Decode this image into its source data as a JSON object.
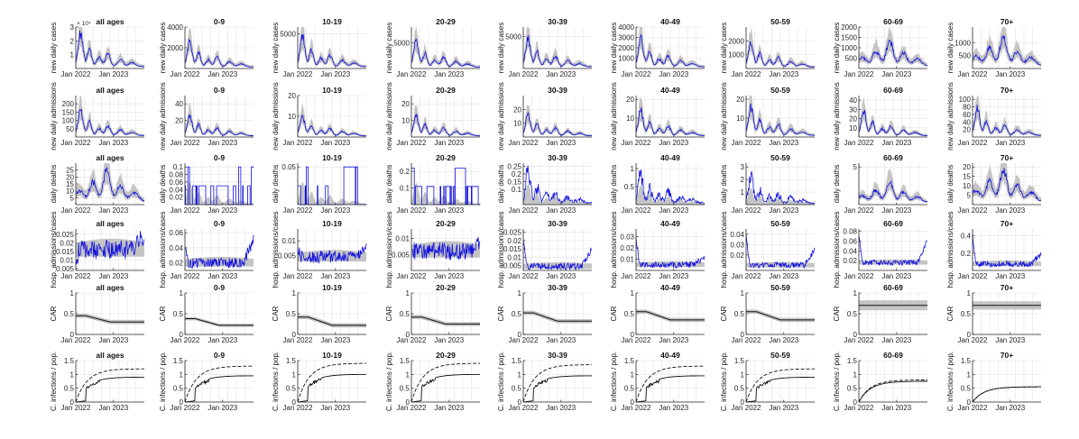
{
  "chart_data": {
    "type": "small-multiples-line",
    "title": "",
    "columns": [
      "all ages",
      "0-9",
      "10-19",
      "20-29",
      "30-39",
      "40-49",
      "50-59",
      "60-69",
      "70+"
    ],
    "x_tick_labels": [
      "Jan 2022",
      "Jan 2023"
    ],
    "colors": {
      "line": "#1010e0",
      "band": "#c4c4c4",
      "grid": "#e2e2e2",
      "axis": "#262626",
      "black": "#111111"
    },
    "rows": [
      {
        "ylabel": "new daily cases",
        "kind": "cases",
        "panels": [
          {
            "title": "all ages",
            "ymax": 3,
            "ticks": [
              1,
              2,
              3
            ],
            "multiplier": "× 10⁴",
            "peak": 2.5
          },
          {
            "title": "0-9",
            "ymax": 4000,
            "ticks": [
              2000,
              4000
            ],
            "peak": 2600
          },
          {
            "title": "10-19",
            "ymax": 6000,
            "ticks": [
              5000
            ],
            "peak": 4600
          },
          {
            "title": "20-29",
            "ymax": 8000,
            "ticks": [
              5000
            ],
            "peak": 5200
          },
          {
            "title": "30-39",
            "ymax": 6500,
            "ticks": [
              5000
            ],
            "peak": 4700
          },
          {
            "title": "40-49",
            "ymax": 4000,
            "ticks": [
              1000,
              2000,
              3000,
              4000
            ],
            "peak": 2900
          },
          {
            "title": "50-59",
            "ymax": 3000,
            "ticks": [
              1000,
              2000
            ],
            "peak": 1900
          },
          {
            "title": "60-69",
            "ymax": 2000,
            "ticks": [
              500,
              1000,
              1500,
              2000
            ],
            "peak": 1300
          },
          {
            "title": "70+",
            "ymax": 1600,
            "ticks": [
              500,
              1000
            ],
            "peak": 1200
          }
        ]
      },
      {
        "ylabel": "new daily admissions",
        "kind": "admissions",
        "panels": [
          {
            "title": "all ages",
            "ymax": 250,
            "ticks": [
              50,
              100,
              150,
              200
            ],
            "peak": 160
          },
          {
            "title": "0-9",
            "ymax": 50,
            "ticks": [
              20,
              40
            ],
            "peak": 26
          },
          {
            "title": "10-19",
            "ymax": 20,
            "ticks": [
              10,
              20
            ],
            "peak": 10
          },
          {
            "title": "20-29",
            "ymax": 25,
            "ticks": [
              10,
              20
            ],
            "peak": 13
          },
          {
            "title": "30-39",
            "ymax": 30,
            "ticks": [
              10,
              20
            ],
            "peak": 16
          },
          {
            "title": "40-49",
            "ymax": 22,
            "ticks": [
              10,
              20
            ],
            "peak": 14
          },
          {
            "title": "50-59",
            "ymax": 22,
            "ticks": [
              10,
              20
            ],
            "peak": 16
          },
          {
            "title": "60-69",
            "ymax": 45,
            "ticks": [
              10,
              20,
              30,
              40
            ],
            "peak": 28
          },
          {
            "title": "70+",
            "ymax": 110,
            "ticks": [
              20,
              40,
              60,
              80,
              100
            ],
            "peak": 75
          }
        ]
      },
      {
        "ylabel": "daily deaths",
        "kind": "deaths",
        "panels": [
          {
            "title": "all ages",
            "ymax": 30,
            "ticks": [
              5,
              10,
              15,
              20,
              25
            ],
            "peak": 25,
            "style": "smooth"
          },
          {
            "title": "0-9",
            "ymax": 0.11,
            "ticks": [
              0.02,
              0.04,
              0.06,
              0.08,
              0.1
            ],
            "peak": 0.1,
            "style": "sparse"
          },
          {
            "title": "10-19",
            "ymax": 0.055,
            "ticks": [
              0.05
            ],
            "peak": 0.05,
            "style": "sparse"
          },
          {
            "title": "20-29",
            "ymax": 0.25,
            "ticks": [
              0.1,
              0.2
            ],
            "peak": 0.22,
            "style": "sparse"
          },
          {
            "title": "30-39",
            "ymax": 0.27,
            "ticks": [
              0.1,
              0.15,
              0.2,
              0.25
            ],
            "peak": 0.22,
            "style": "noisy"
          },
          {
            "title": "40-49",
            "ymax": 1.15,
            "ticks": [
              0.5,
              1
            ],
            "peak": 0.9,
            "style": "noisy"
          },
          {
            "title": "50-59",
            "ymax": 3.3,
            "ticks": [
              1,
              2,
              3
            ],
            "peak": 2.2,
            "style": "noisy"
          },
          {
            "title": "60-69",
            "ymax": 5.5,
            "ticks": [
              5
            ],
            "peak": 3,
            "style": "smooth"
          },
          {
            "title": "70+",
            "ymax": 22,
            "ticks": [
              5,
              10,
              15,
              20
            ],
            "peak": 19,
            "style": "smooth"
          }
        ]
      },
      {
        "ylabel": "hosp. admissions/cases",
        "kind": "ratio",
        "panels": [
          {
            "title": "all ages",
            "ymin": 0.004,
            "ymax": 0.028,
            "ticks": [
              0.005,
              0.01,
              0.015,
              0.02,
              0.025
            ],
            "band": [
              0.012,
              0.02
            ],
            "start": 0.008,
            "end": 0.025
          },
          {
            "title": "0-9",
            "ymin": 0.01,
            "ymax": 0.065,
            "ticks": [
              0.02,
              0.04,
              0.06
            ],
            "band": [
              0.015,
              0.025
            ],
            "start": 0.04,
            "end": 0.05
          },
          {
            "title": "10-19",
            "ymin": 0.0,
            "ymax": 0.014,
            "ticks": [
              0.005,
              0.01
            ],
            "band": [
              0.003,
              0.006
            ],
            "start": 0.008,
            "end": 0.008
          },
          {
            "title": "20-29",
            "ymin": 0.0,
            "ymax": 0.013,
            "ticks": [
              0.005,
              0.01
            ],
            "band": [
              0.004,
              0.008
            ],
            "start": 0.007,
            "end": 0.009
          },
          {
            "title": "30-39",
            "ymin": 0.002,
            "ymax": 0.027,
            "ticks": [
              0.005,
              0.01,
              0.015,
              0.02,
              0.025
            ],
            "band": [
              0.003,
              0.006
            ],
            "start": 0.02,
            "end": 0.015
          },
          {
            "title": "40-49",
            "ymin": 0.0,
            "ymax": 0.037,
            "ticks": [
              0.01,
              0.02,
              0.03
            ],
            "band": [
              0.003,
              0.007
            ],
            "start": 0.03,
            "end": 0.012
          },
          {
            "title": "50-59",
            "ymin": 0.005,
            "ymax": 0.045,
            "ticks": [
              0.02,
              0.03,
              0.04
            ],
            "band": [
              0.008,
              0.012
            ],
            "start": 0.04,
            "end": 0.025
          },
          {
            "title": "60-69",
            "ymin": 0.0,
            "ymax": 0.085,
            "ticks": [
              0.02,
              0.04,
              0.06,
              0.08
            ],
            "band": [
              0.012,
              0.02
            ],
            "start": 0.07,
            "end": 0.06
          },
          {
            "title": "70+",
            "ymin": 0.0,
            "ymax": 0.48,
            "ticks": [
              0.2,
              0.4
            ],
            "band": [
              0.05,
              0.1
            ],
            "start": 0.42,
            "end": 0.18
          }
        ]
      },
      {
        "ylabel": "CAR",
        "kind": "car",
        "panels": [
          {
            "title": "all ages",
            "ymax": 1.0,
            "ticks": [
              0,
              0.5,
              1
            ],
            "start": 0.45,
            "end": 0.3,
            "halfwidth": 0.05
          },
          {
            "title": "0-9",
            "ymax": 1.0,
            "ticks": [
              0,
              0.5,
              1
            ],
            "start": 0.38,
            "end": 0.22,
            "halfwidth": 0.04
          },
          {
            "title": "10-19",
            "ymax": 1.0,
            "ticks": [
              0,
              0.5,
              1
            ],
            "start": 0.42,
            "end": 0.22,
            "halfwidth": 0.05
          },
          {
            "title": "20-29",
            "ymax": 1.0,
            "ticks": [
              0,
              0.5,
              1
            ],
            "start": 0.42,
            "end": 0.25,
            "halfwidth": 0.05
          },
          {
            "title": "30-39",
            "ymax": 1.0,
            "ticks": [
              0,
              0.5,
              1
            ],
            "start": 0.52,
            "end": 0.32,
            "halfwidth": 0.05
          },
          {
            "title": "40-49",
            "ymax": 1.0,
            "ticks": [
              0,
              0.5,
              1
            ],
            "start": 0.55,
            "end": 0.35,
            "halfwidth": 0.05
          },
          {
            "title": "50-59",
            "ymax": 1.0,
            "ticks": [
              0,
              0.5,
              1
            ],
            "start": 0.55,
            "end": 0.35,
            "halfwidth": 0.05
          },
          {
            "title": "60-69",
            "ymax": 1.0,
            "ticks": [
              0,
              0.5,
              1
            ],
            "start": 0.7,
            "end": 0.7,
            "halfwidth": 0.12
          },
          {
            "title": "70+",
            "ymax": 1.0,
            "ticks": [
              0,
              0.5,
              1
            ],
            "start": 0.7,
            "end": 0.7,
            "halfwidth": 0.1
          }
        ]
      },
      {
        "ylabel": "C. infections / pop.",
        "kind": "cumulative",
        "panels": [
          {
            "title": "all ages",
            "ymax": 1.5,
            "ticks": [
              0,
              0.5,
              1,
              1.5
            ],
            "solid_end": 0.9,
            "dash_end": 1.2
          },
          {
            "title": "0-9",
            "ymax": 1.5,
            "ticks": [
              0,
              0.5,
              1,
              1.5
            ],
            "solid_end": 0.95,
            "dash_end": 1.3
          },
          {
            "title": "10-19",
            "ymax": 1.5,
            "ticks": [
              0,
              0.5,
              1,
              1.5
            ],
            "solid_end": 1.0,
            "dash_end": 1.4
          },
          {
            "title": "20-29",
            "ymax": 1.5,
            "ticks": [
              0,
              0.5,
              1,
              1.5
            ],
            "solid_end": 1.0,
            "dash_end": 1.4
          },
          {
            "title": "30-39",
            "ymax": 1.5,
            "ticks": [
              0,
              0.5,
              1,
              1.5
            ],
            "solid_end": 0.95,
            "dash_end": 1.35
          },
          {
            "title": "40-49",
            "ymax": 1.5,
            "ticks": [
              0,
              0.5,
              1,
              1.5
            ],
            "solid_end": 0.95,
            "dash_end": 1.3
          },
          {
            "title": "50-59",
            "ymax": 1.5,
            "ticks": [
              0,
              0.5,
              1,
              1.5
            ],
            "solid_end": 0.9,
            "dash_end": 1.2
          },
          {
            "title": "60-69",
            "ymax": 1.5,
            "ticks": [
              0,
              0.5,
              1,
              1.5
            ],
            "solid_end": 0.75,
            "dash_end": 0.8
          },
          {
            "title": "70+",
            "ymax": 1.5,
            "ticks": [
              0,
              0.5,
              1,
              1.5
            ],
            "solid_end": 0.55,
            "dash_end": 0.55
          }
        ]
      }
    ]
  }
}
